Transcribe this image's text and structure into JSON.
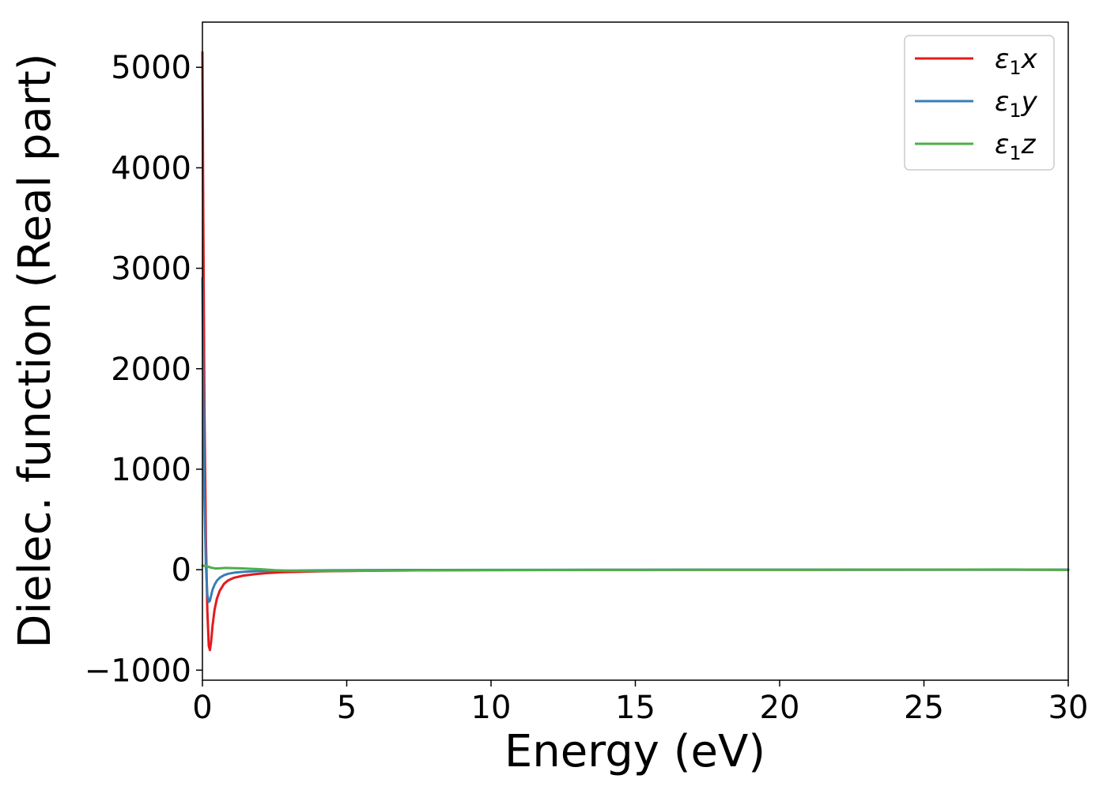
{
  "chart_data": {
    "type": "line",
    "title": "",
    "xlabel": "Energy (eV)",
    "ylabel": "Dielec. function (Real part)",
    "xlim": [
      0,
      30
    ],
    "ylim": [
      -1100,
      5450
    ],
    "xticks": [
      "0",
      "5",
      "10",
      "15",
      "20",
      "25",
      "30"
    ],
    "yticks": [
      "−1000",
      "0",
      "1000",
      "2000",
      "3000",
      "4000",
      "5000"
    ],
    "grid": false,
    "legend_position": "top-right",
    "series": [
      {
        "name": "ε₁x",
        "legend_main": "ε",
        "legend_sub": "1",
        "legend_suffix": "x",
        "color": "#e41a1c",
        "x": [
          0.0,
          0.03,
          0.07,
          0.12,
          0.17,
          0.22,
          0.26,
          0.3,
          0.35,
          0.42,
          0.5,
          0.6,
          0.75,
          0.9,
          1.1,
          1.4,
          1.8,
          2.2,
          2.8,
          3.5,
          4.5,
          6.0,
          8.0,
          10.0,
          15.0,
          20.0,
          25.0,
          28.0,
          30.0
        ],
        "y": [
          5150,
          3500,
          1600,
          300,
          -400,
          -760,
          -800,
          -720,
          -560,
          -400,
          -290,
          -210,
          -140,
          -105,
          -80,
          -60,
          -45,
          -35,
          -25,
          -20,
          -15,
          -10,
          -6,
          -4,
          -2,
          -1,
          0,
          0,
          -1
        ]
      },
      {
        "name": "ε₁y",
        "legend_main": "ε",
        "legend_sub": "1",
        "legend_suffix": "y",
        "color": "#377eb8",
        "x": [
          0.0,
          0.03,
          0.07,
          0.12,
          0.17,
          0.22,
          0.26,
          0.3,
          0.35,
          0.42,
          0.5,
          0.6,
          0.75,
          0.9,
          1.1,
          1.4,
          1.8,
          2.2,
          2.8,
          3.5,
          4.5,
          6.0,
          8.0,
          10.0,
          15.0,
          20.0,
          25.0,
          28.0,
          30.0
        ],
        "y": [
          2900,
          1800,
          700,
          50,
          -250,
          -320,
          -310,
          -260,
          -200,
          -150,
          -110,
          -80,
          -55,
          -40,
          -30,
          -22,
          -16,
          -13,
          -10,
          -8,
          -6,
          -4,
          -3,
          -2,
          -1,
          0,
          0,
          0,
          0
        ]
      },
      {
        "name": "ε₁z",
        "legend_main": "ε",
        "legend_sub": "1",
        "legend_suffix": "z",
        "color": "#4daf4a",
        "x": [
          0.0,
          0.15,
          0.3,
          0.45,
          0.6,
          0.8,
          1.0,
          1.3,
          1.6,
          2.0,
          2.5,
          3.0,
          3.5,
          4.0,
          5.0,
          6.0,
          8.0,
          10.0,
          15.0,
          20.0,
          25.0,
          28.0,
          29.0,
          30.0
        ],
        "y": [
          40,
          35,
          20,
          12,
          14,
          18,
          16,
          14,
          10,
          5,
          -5,
          -10,
          -12,
          -14,
          -12,
          -9,
          -6,
          -4,
          -2,
          -1,
          0,
          2,
          0,
          -2
        ]
      }
    ]
  }
}
